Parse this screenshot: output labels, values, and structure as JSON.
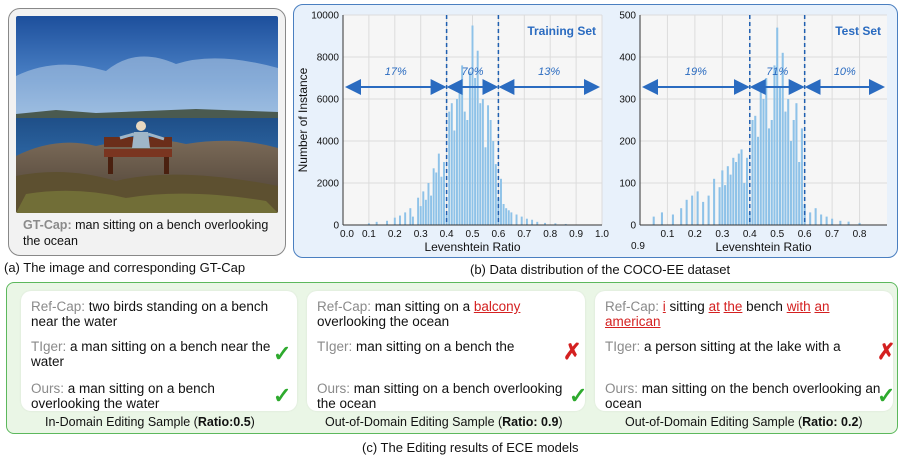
{
  "panel_a": {
    "gt_label": "GT-Cap:",
    "gt_text": "man sitting on a bench overlooking the ocean",
    "caption": "(a) The image and corresponding GT-Cap"
  },
  "panel_b": {
    "caption": "(b) Data distribution of the COCO-EE dataset"
  },
  "panel_c": {
    "caption": "(c) The Editing results of ECE models",
    "samples": [
      {
        "ref_label": "Ref-Cap:",
        "ref_text": " two birds standing on a bench near the water",
        "tiger_label": "TIger:",
        "tiger_text": " a man sitting on a bench near the water",
        "ours_label": "Ours:",
        "ours_text": " a man sitting on a bench overlooking the water",
        "caption_prefix": "In-Domain Editing Sample (",
        "caption_bold": "Ratio:0.5",
        "caption_suffix": ")"
      },
      {
        "ref_label": "Ref-Cap:",
        "ref_pre": " man sitting on a ",
        "ref_red": "balcony",
        "ref_post": " overlooking the ocean",
        "tiger_label": "TIger:",
        "tiger_text": " man sitting on a bench the",
        "ours_label": "Ours:",
        "ours_text": " man sitting on a bench overlooking the ocean",
        "caption_prefix": "Out-of-Domain Editing Sample (",
        "caption_bold": "Ratio: 0.9",
        "caption_suffix": ")"
      },
      {
        "ref_label": "Ref-Cap:",
        "ref_r1": "i",
        "ref_t1": " sitting ",
        "ref_r2": "at",
        "ref_t2": " ",
        "ref_r3": "the",
        "ref_t3": " bench ",
        "ref_r4": "with",
        "ref_t4": " ",
        "ref_r5": "an",
        "ref_r6": "american",
        "tiger_label": "TIger:",
        "tiger_text": " a person sitting at the lake with a",
        "ours_label": "Ours:",
        "ours_text": " man sitting on the  bench overlooking an ocean",
        "caption_prefix": "Out-of-Domain Editing Sample (",
        "caption_bold": "Ratio: 0.2",
        "caption_suffix": ")"
      }
    ]
  },
  "chart_data": [
    {
      "type": "bar",
      "annotation_title": "Training Set",
      "xlabel": "Levenshtein Ratio",
      "ylabel": "Number of Instance",
      "xlim": [
        0,
        1.0
      ],
      "ylim": [
        0,
        10000
      ],
      "xticks": [
        "0.0",
        "0.1",
        "0.2",
        "0.3",
        "0.4",
        "0.5",
        "0.6",
        "0.7",
        "0.8",
        "0.9",
        "1.0"
      ],
      "yticks": [
        "0",
        "2000",
        "4000",
        "6000",
        "8000",
        "10000"
      ],
      "dividers": [
        0.4,
        0.6
      ],
      "region_labels": [
        "17%",
        "70%",
        "13%"
      ],
      "x": [
        0.1,
        0.13,
        0.17,
        0.2,
        0.22,
        0.24,
        0.26,
        0.27,
        0.29,
        0.3,
        0.31,
        0.32,
        0.33,
        0.34,
        0.35,
        0.36,
        0.37,
        0.38,
        0.39,
        0.4,
        0.41,
        0.42,
        0.43,
        0.44,
        0.45,
        0.46,
        0.47,
        0.48,
        0.49,
        0.5,
        0.51,
        0.52,
        0.53,
        0.54,
        0.55,
        0.56,
        0.57,
        0.58,
        0.59,
        0.6,
        0.61,
        0.62,
        0.63,
        0.64,
        0.65,
        0.67,
        0.69,
        0.71,
        0.73,
        0.75,
        0.78,
        0.82,
        0.86
      ],
      "values": [
        80,
        150,
        200,
        350,
        450,
        600,
        800,
        400,
        1300,
        900,
        1600,
        1200,
        2000,
        1400,
        2700,
        2500,
        3400,
        2300,
        3000,
        500,
        5400,
        5800,
        4500,
        6000,
        6300,
        7600,
        5400,
        5000,
        7300,
        9500,
        7000,
        8300,
        5800,
        6000,
        3700,
        5700,
        5000,
        4000,
        2900,
        1300,
        2200,
        1000,
        800,
        700,
        600,
        500,
        400,
        300,
        250,
        150,
        100,
        80,
        50
      ]
    },
    {
      "type": "bar",
      "annotation_title": "Test Set",
      "xlabel": "Levenshtein Ratio",
      "ylabel": "",
      "xlim": [
        0,
        0.9
      ],
      "ylim": [
        0,
        500
      ],
      "xticks": [
        "0.9",
        "0.1",
        "0.2",
        "0.3",
        "0.4",
        "0.5",
        "0.6",
        "0.7",
        "0.8"
      ],
      "yticks": [
        "0",
        "100",
        "200",
        "300",
        "400",
        "500"
      ],
      "dividers": [
        0.4,
        0.6
      ],
      "region_labels": [
        "19%",
        "71%",
        "10%"
      ],
      "x": [
        0.05,
        0.08,
        0.12,
        0.15,
        0.17,
        0.19,
        0.21,
        0.23,
        0.25,
        0.27,
        0.29,
        0.3,
        0.31,
        0.32,
        0.33,
        0.34,
        0.35,
        0.36,
        0.37,
        0.38,
        0.39,
        0.4,
        0.41,
        0.42,
        0.43,
        0.44,
        0.45,
        0.46,
        0.47,
        0.48,
        0.49,
        0.5,
        0.51,
        0.52,
        0.53,
        0.54,
        0.55,
        0.56,
        0.57,
        0.58,
        0.59,
        0.6,
        0.62,
        0.64,
        0.66,
        0.68,
        0.7,
        0.73,
        0.76,
        0.8
      ],
      "values": [
        20,
        30,
        25,
        40,
        60,
        70,
        80,
        55,
        70,
        110,
        90,
        130,
        95,
        140,
        120,
        160,
        150,
        170,
        180,
        100,
        160,
        30,
        250,
        260,
        210,
        320,
        300,
        350,
        230,
        250,
        380,
        470,
        330,
        410,
        270,
        300,
        200,
        250,
        290,
        150,
        230,
        50,
        30,
        40,
        25,
        20,
        15,
        10,
        8,
        5
      ]
    }
  ]
}
